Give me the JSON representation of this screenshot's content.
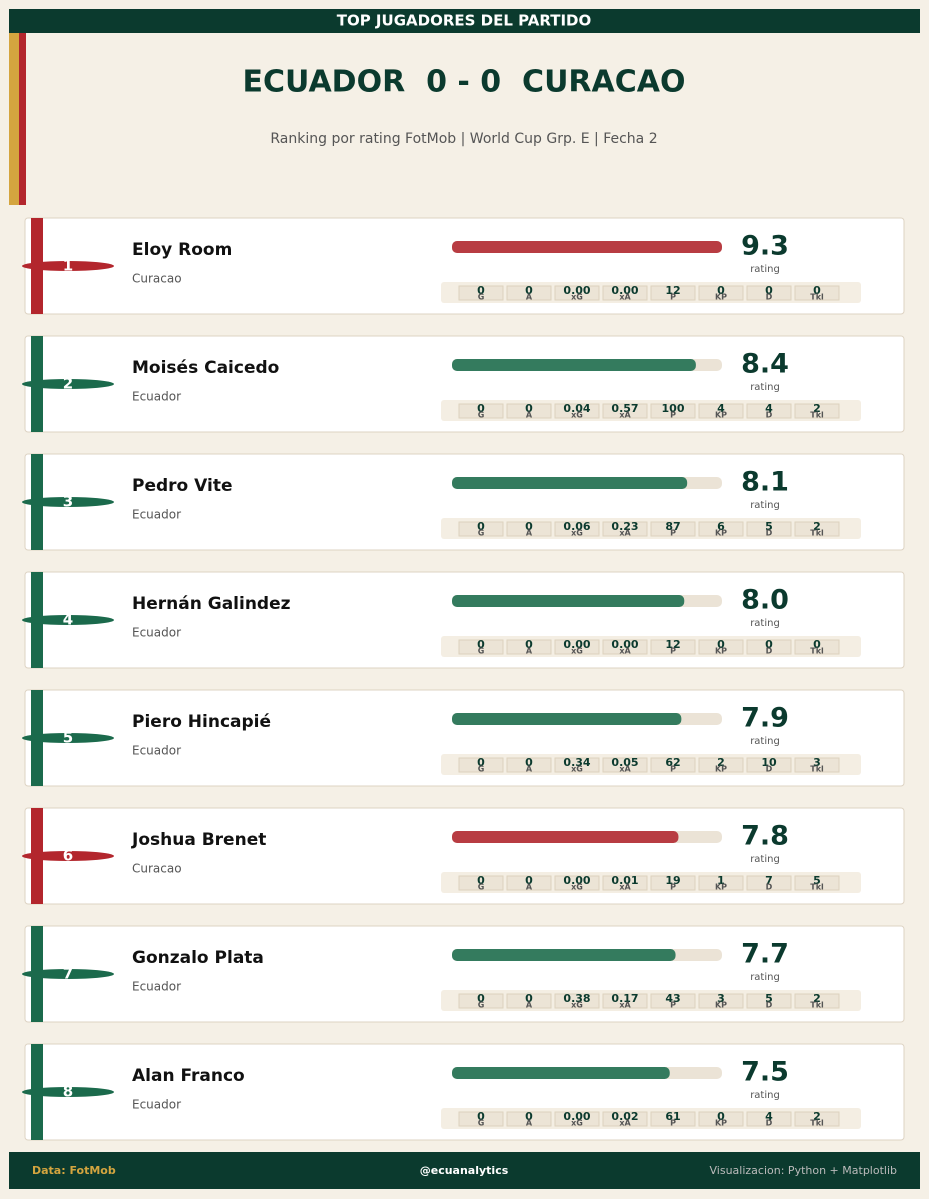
{
  "header": {
    "banner": "TOP JUGADORES DEL PARTIDO",
    "title": "ECUADOR  0 - 0  CURACAO",
    "subtitle": "Ranking por rating FotMob | World Cup Grp. E | Fecha 2"
  },
  "rating_caption": "rating",
  "stat_labels": [
    "G",
    "A",
    "xG",
    "xA",
    "P",
    "KP",
    "D",
    "Tkl"
  ],
  "players": [
    {
      "rank": 1,
      "name": "Eloy Room",
      "team": "Curacao",
      "color": "#b3262d",
      "bar_color": "#b83c42",
      "rating": 9.3,
      "stats": [
        "0",
        "0",
        "0.00",
        "0.00",
        "12",
        "0",
        "0",
        "0"
      ]
    },
    {
      "rank": 2,
      "name": "Moisés Caicedo",
      "team": "Ecuador",
      "color": "#1b6a4c",
      "bar_color": "#347b5e",
      "rating": 8.4,
      "stats": [
        "0",
        "0",
        "0.04",
        "0.57",
        "100",
        "4",
        "4",
        "2"
      ]
    },
    {
      "rank": 3,
      "name": "Pedro Vite",
      "team": "Ecuador",
      "color": "#1b6a4c",
      "bar_color": "#347b5e",
      "rating": 8.1,
      "stats": [
        "0",
        "0",
        "0.06",
        "0.23",
        "87",
        "6",
        "5",
        "2"
      ]
    },
    {
      "rank": 4,
      "name": "Hernán Galindez",
      "team": "Ecuador",
      "color": "#1b6a4c",
      "bar_color": "#347b5e",
      "rating": 8,
      "rating_label": "8.0",
      "stats": [
        "0",
        "0",
        "0.00",
        "0.00",
        "12",
        "0",
        "0",
        "0"
      ]
    },
    {
      "rank": 5,
      "name": "Piero Hincapié",
      "team": "Ecuador",
      "color": "#1b6a4c",
      "bar_color": "#347b5e",
      "rating": 7.9,
      "stats": [
        "0",
        "0",
        "0.34",
        "0.05",
        "62",
        "2",
        "10",
        "3"
      ]
    },
    {
      "rank": 6,
      "name": "Joshua Brenet",
      "team": "Curacao",
      "color": "#b3262d",
      "bar_color": "#b83c42",
      "rating": 7.8,
      "stats": [
        "0",
        "0",
        "0.00",
        "0.01",
        "19",
        "1",
        "7",
        "5"
      ]
    },
    {
      "rank": 7,
      "name": "Gonzalo Plata",
      "team": "Ecuador",
      "color": "#1b6a4c",
      "bar_color": "#347b5e",
      "rating": 7.7,
      "stats": [
        "0",
        "0",
        "0.38",
        "0.17",
        "43",
        "3",
        "5",
        "2"
      ]
    },
    {
      "rank": 8,
      "name": "Alan Franco",
      "team": "Ecuador",
      "color": "#1b6a4c",
      "bar_color": "#347b5e",
      "rating": 7.5,
      "stats": [
        "0",
        "0",
        "0.00",
        "0.02",
        "61",
        "0",
        "4",
        "2"
      ]
    }
  ],
  "footer": {
    "left": "Data: FotMob",
    "center": "@ecuanalytics",
    "right": "Visualizacion: Python + Matplotlib"
  }
}
